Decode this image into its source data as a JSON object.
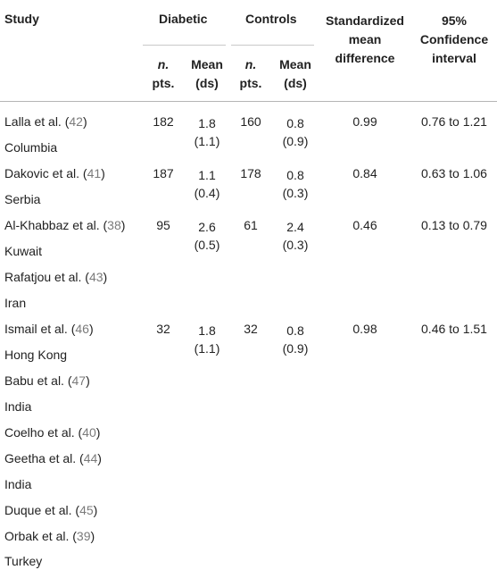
{
  "headers": {
    "study": "Study",
    "diabetic": "Diabetic",
    "controls": "Controls",
    "smd": [
      "Standardized",
      "mean",
      "difference"
    ],
    "ci": [
      "95%",
      "Confidence",
      "interval"
    ],
    "n_a": "n.",
    "n_b": "pts.",
    "mean_a": "Mean",
    "mean_b": "(ds)"
  },
  "rows": [
    {
      "author": "Lalla et al. (",
      "ref": "42",
      "close": ")",
      "country": "Columbia",
      "d_n": "182",
      "d_mean": "1.8",
      "d_sd": "(1.1)",
      "c_n": "160",
      "c_mean": "0.8",
      "c_sd": "(0.9)",
      "smd": "0.99",
      "ci": "0.76 to 1.21"
    },
    {
      "author": "Dakovic et al. (",
      "ref": "41",
      "close": ")",
      "country": "Serbia",
      "d_n": "187",
      "d_mean": "1.1",
      "d_sd": "(0.4)",
      "c_n": "178",
      "c_mean": "0.8",
      "c_sd": "(0.3)",
      "smd": "0.84",
      "ci": "0.63 to 1.06"
    },
    {
      "author": "Al-Khabbaz et al. (",
      "ref": "38",
      "close": ")",
      "country": "Kuwait",
      "d_n": "95",
      "d_mean": "2.6",
      "d_sd": "(0.5)",
      "c_n": "61",
      "c_mean": "2.4",
      "c_sd": "(0.3)",
      "smd": "0.46",
      "ci": "0.13 to 0.79"
    },
    {
      "author": "Rafatjou et al. (",
      "ref": "43",
      "close": ")",
      "country": "Iran"
    },
    {
      "author": "Ismail et al. (",
      "ref": "46",
      "close": ")",
      "country": "Hong Kong",
      "d_n": "32",
      "d_mean": "1.8",
      "d_sd": "(1.1)",
      "c_n": "32",
      "c_mean": "0.8",
      "c_sd": "(0.9)",
      "smd": "0.98",
      "ci": "0.46 to 1.51"
    },
    {
      "author": "Babu et al. (",
      "ref": "47",
      "close": ")",
      "country": "India"
    },
    {
      "author": "Coelho et al. (",
      "ref": "40",
      "close": ")"
    },
    {
      "author": "Geetha et al. (",
      "ref": "44",
      "close": ")",
      "country": "India"
    },
    {
      "author": "Duque et al. (",
      "ref": "45",
      "close": ")"
    },
    {
      "author": "Orbak et al. (",
      "ref": "39",
      "close": ")",
      "country": "Turkey"
    }
  ]
}
